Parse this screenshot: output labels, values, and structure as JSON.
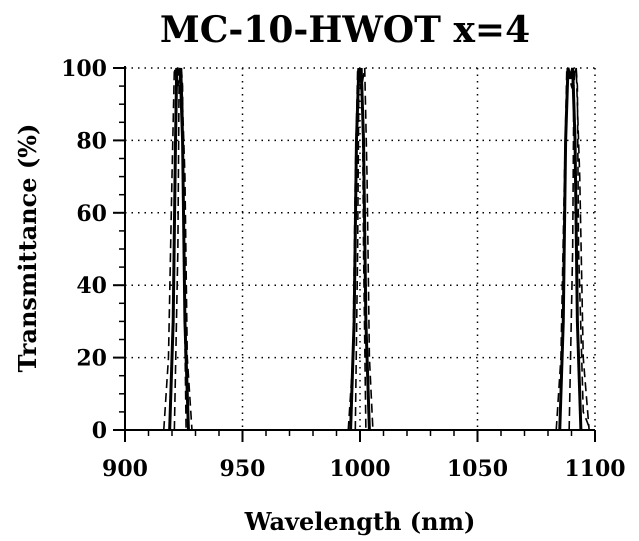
{
  "chart_data": {
    "type": "line",
    "title": "MC-10-HWOT x=4",
    "xlabel": "Wavelength (nm)",
    "ylabel": "Transmittance (%)",
    "xlim": [
      900,
      1100
    ],
    "ylim": [
      0,
      100
    ],
    "xticks": [
      900,
      950,
      1000,
      1050,
      1100
    ],
    "yticks": [
      0,
      20,
      40,
      60,
      80,
      100
    ],
    "grid": true,
    "grid_style": "dotted",
    "legend": "none",
    "series": [
      {
        "style": "solid",
        "color": "#000000",
        "peaks": [
          {
            "x": [
              919.0,
              920.5,
              921.5,
              922.0,
              923.0,
              923.5,
              924.5,
              925.5,
              927.0
            ],
            "y": [
              0,
              30,
              80,
              100,
              98,
              100,
              80,
              30,
              0
            ]
          },
          {
            "x": [
              996.0,
              997.5,
              998.5,
              999.5,
              1000.0,
              1000.5,
              1001.5,
              1002.5,
              1004.0
            ],
            "y": [
              0,
              30,
              80,
              100,
              96,
              100,
              80,
              30,
              0
            ]
          },
          {
            "x": [
              1085.0,
              1086.5,
              1087.5,
              1088.5,
              1089.5,
              1090.5,
              1091.5,
              1092.5,
              1094.0
            ],
            "y": [
              0,
              30,
              80,
              100,
              97,
              100,
              80,
              30,
              0
            ]
          }
        ]
      },
      {
        "style": "dashed",
        "color": "#000000",
        "peaks": [
          {
            "x": [
              916.5,
              918.5,
              920.0,
              921.0,
              922.5,
              924.0,
              925.5,
              926.5,
              928.5
            ],
            "y": [
              0,
              20,
              70,
              100,
              95,
              100,
              70,
              20,
              0
            ]
          },
          {
            "x": [
              995.0,
              997.0,
              998.0,
              999.0,
              1000.5,
              1002.0,
              1003.0,
              1004.0,
              1005.5
            ],
            "y": [
              0,
              20,
              70,
              100,
              94,
              100,
              70,
              20,
              0
            ]
          },
          {
            "x": [
              1083.5,
              1085.5,
              1087.0,
              1088.0,
              1090.0,
              1092.0,
              1093.5,
              1095.0,
              1097.5
            ],
            "y": [
              0,
              20,
              70,
              100,
              95,
              100,
              70,
              20,
              0
            ]
          }
        ]
      },
      {
        "style": "dashed",
        "color": "#000000",
        "peaks": [
          {
            "x": [
              921.0,
              922.5,
              923.0,
              923.5,
              924.0,
              924.5,
              925.0,
              926.0
            ],
            "y": [
              0,
              50,
              95,
              100,
              100,
              95,
              50,
              0
            ]
          },
          {
            "x": [
              998.0,
              999.0,
              999.5,
              1000.0,
              1000.5,
              1001.0,
              1001.5,
              1002.5
            ],
            "y": [
              0,
              50,
              95,
              100,
              100,
              95,
              50,
              0
            ]
          },
          {
            "x": [
              1089.0,
              1090.5,
              1091.0,
              1091.5,
              1092.0,
              1092.5,
              1093.0,
              1095.0,
              1098.0
            ],
            "y": [
              0,
              50,
              95,
              100,
              100,
              95,
              50,
              5,
              0
            ]
          }
        ]
      }
    ]
  }
}
